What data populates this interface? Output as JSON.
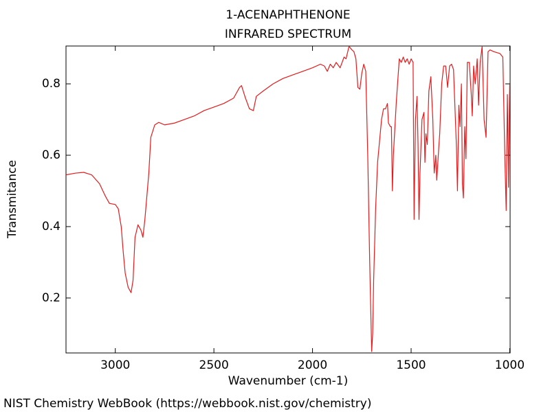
{
  "chart_data": {
    "type": "line",
    "title": "1-ACENAPHTHENONE",
    "subtitle": "INFRARED SPECTRUM",
    "x_label": "Wavenumber (cm-1)",
    "y_label": "Transmitance",
    "source": "NIST Chemistry WebBook (https://webbook.nist.gov/chemistry)",
    "xlim": [
      3250,
      998
    ],
    "ylim": [
      0.046,
      0.906
    ],
    "xticks": [
      3000,
      2500,
      2000,
      1500,
      1000
    ],
    "yticks": [
      0.2,
      0.4,
      0.6,
      0.8
    ],
    "grid": false,
    "series": [
      {
        "color": "#e41a1c",
        "x": [
          3250,
          3200,
          3160,
          3120,
          3080,
          3050,
          3030,
          3000,
          2985,
          2970,
          2960,
          2950,
          2935,
          2920,
          2910,
          2900,
          2885,
          2870,
          2860,
          2850,
          2830,
          2820,
          2800,
          2780,
          2750,
          2700,
          2650,
          2600,
          2550,
          2500,
          2450,
          2400,
          2370,
          2360,
          2340,
          2320,
          2300,
          2285,
          2250,
          2200,
          2150,
          2100,
          2050,
          2000,
          1960,
          1940,
          1925,
          1910,
          1895,
          1880,
          1860,
          1840,
          1830,
          1815,
          1800,
          1790,
          1780,
          1770,
          1760,
          1750,
          1740,
          1730,
          1720,
          1710,
          1700,
          1695,
          1690,
          1680,
          1670,
          1650,
          1640,
          1630,
          1620,
          1615,
          1605,
          1600,
          1595,
          1590,
          1575,
          1560,
          1550,
          1540,
          1530,
          1520,
          1510,
          1500,
          1490,
          1485,
          1478,
          1470,
          1465,
          1460,
          1455,
          1445,
          1435,
          1430,
          1425,
          1418,
          1410,
          1400,
          1390,
          1383,
          1375,
          1370,
          1360,
          1355,
          1345,
          1335,
          1325,
          1315,
          1305,
          1295,
          1285,
          1270,
          1265,
          1258,
          1252,
          1245,
          1240,
          1235,
          1228,
          1222,
          1215,
          1205,
          1195,
          1190,
          1183,
          1175,
          1165,
          1158,
          1150,
          1140,
          1130,
          1120,
          1110,
          1100,
          1080,
          1050,
          1035,
          1025,
          1018,
          1012,
          1006,
          1000
        ],
        "values": [
          0.545,
          0.55,
          0.552,
          0.545,
          0.52,
          0.485,
          0.465,
          0.462,
          0.45,
          0.4,
          0.33,
          0.27,
          0.23,
          0.215,
          0.25,
          0.37,
          0.405,
          0.39,
          0.37,
          0.42,
          0.55,
          0.65,
          0.685,
          0.692,
          0.685,
          0.69,
          0.7,
          0.71,
          0.725,
          0.735,
          0.745,
          0.76,
          0.79,
          0.795,
          0.76,
          0.73,
          0.725,
          0.765,
          0.78,
          0.8,
          0.815,
          0.825,
          0.835,
          0.845,
          0.855,
          0.85,
          0.835,
          0.855,
          0.845,
          0.86,
          0.845,
          0.875,
          0.87,
          0.905,
          0.895,
          0.89,
          0.87,
          0.79,
          0.785,
          0.83,
          0.855,
          0.835,
          0.6,
          0.3,
          0.05,
          0.1,
          0.25,
          0.45,
          0.58,
          0.7,
          0.73,
          0.73,
          0.745,
          0.69,
          0.68,
          0.68,
          0.5,
          0.6,
          0.75,
          0.87,
          0.86,
          0.875,
          0.86,
          0.87,
          0.855,
          0.87,
          0.86,
          0.42,
          0.7,
          0.765,
          0.63,
          0.42,
          0.55,
          0.7,
          0.72,
          0.58,
          0.66,
          0.63,
          0.78,
          0.82,
          0.7,
          0.55,
          0.6,
          0.53,
          0.62,
          0.66,
          0.8,
          0.85,
          0.85,
          0.79,
          0.85,
          0.855,
          0.84,
          0.62,
          0.5,
          0.74,
          0.68,
          0.8,
          0.52,
          0.48,
          0.68,
          0.59,
          0.86,
          0.86,
          0.77,
          0.71,
          0.85,
          0.8,
          0.87,
          0.74,
          0.86,
          0.905,
          0.7,
          0.65,
          0.89,
          0.895,
          0.89,
          0.885,
          0.875,
          0.6,
          0.445,
          0.77,
          0.51,
          0.8
        ]
      }
    ]
  }
}
